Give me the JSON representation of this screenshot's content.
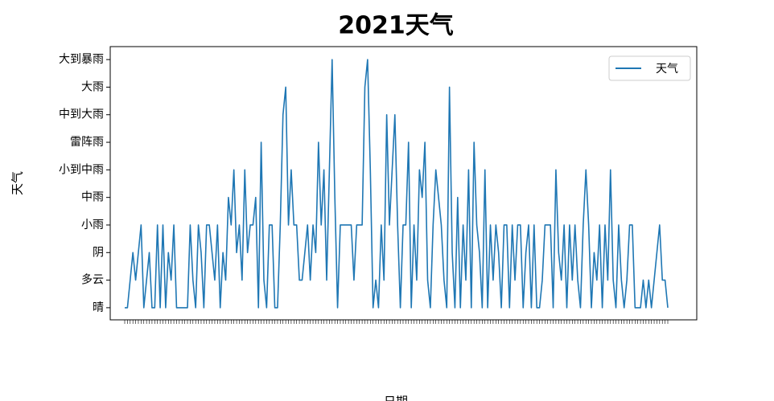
{
  "chart_data": {
    "type": "line",
    "title": "2021天气",
    "x_label": "日期",
    "y_label": "天气",
    "categories": [
      null,
      null,
      null,
      null,
      null,
      null,
      null,
      null,
      null,
      null,
      null,
      null,
      null,
      null,
      null,
      null,
      null,
      null,
      null,
      null,
      null,
      null,
      null,
      null,
      null,
      null,
      null,
      null,
      null,
      null,
      null,
      null,
      null,
      null,
      null,
      null,
      null,
      null,
      null,
      null,
      null,
      null,
      null,
      null,
      null,
      null,
      null,
      null,
      null,
      null,
      null,
      null,
      null,
      null,
      null,
      null,
      null,
      null,
      null,
      null,
      null,
      null,
      null,
      null,
      null,
      null,
      null,
      null,
      null,
      null,
      null,
      null,
      null,
      null,
      null,
      null,
      null,
      null,
      null,
      null,
      null,
      null,
      null,
      null,
      null,
      null,
      null,
      null,
      null,
      null,
      null,
      null,
      null,
      null,
      null,
      null,
      null,
      null,
      null,
      null,
      null,
      null,
      null,
      null,
      null,
      null,
      null,
      null,
      null,
      null,
      null,
      null,
      null,
      null,
      null,
      null,
      null,
      null,
      null,
      null,
      null,
      null,
      null,
      null,
      null,
      null,
      null,
      null,
      null,
      null,
      null,
      null,
      null,
      null,
      null,
      null,
      null,
      null,
      null,
      null,
      null,
      null,
      null,
      null,
      null,
      null,
      null,
      null,
      null,
      null,
      null,
      null,
      null,
      null,
      null,
      null,
      null,
      null,
      null,
      null,
      null,
      null,
      null,
      null,
      null,
      null,
      null,
      null,
      null,
      null,
      null,
      null,
      null,
      null,
      null,
      null,
      null,
      null,
      null,
      null,
      null,
      null,
      null,
      null,
      null,
      null,
      null,
      null,
      null,
      null,
      null,
      null,
      null,
      null,
      null,
      null,
      null,
      null,
      null,
      null
    ],
    "series": [
      {
        "name": "天气",
        "color": "#1f77b4",
        "values": [
          0,
          0,
          1,
          2,
          1,
          2,
          3,
          0,
          1,
          2,
          0,
          0,
          3,
          0,
          3,
          0,
          2,
          1,
          3,
          0,
          0,
          0,
          0,
          0,
          3,
          1,
          0,
          3,
          2,
          0,
          3,
          3,
          2,
          1,
          3,
          0,
          2,
          1,
          4,
          3,
          5,
          2,
          3,
          1,
          5,
          2,
          3,
          3,
          4,
          0,
          6,
          1,
          0,
          3,
          3,
          0,
          0,
          3,
          7,
          8,
          3,
          5,
          3,
          3,
          1,
          1,
          2,
          3,
          1,
          3,
          2,
          6,
          3,
          5,
          1,
          5,
          9,
          4,
          0,
          3,
          3,
          3,
          3,
          3,
          1,
          3,
          3,
          3,
          8,
          9,
          5,
          0,
          1,
          0,
          3,
          1,
          7,
          3,
          5,
          7,
          3,
          0,
          3,
          3,
          6,
          0,
          3,
          1,
          5,
          4,
          6,
          1,
          0,
          3,
          5,
          4,
          3,
          1,
          0,
          8,
          2,
          0,
          4,
          0,
          3,
          1,
          5,
          0,
          6,
          3,
          2,
          0,
          5,
          0,
          3,
          1,
          3,
          2,
          0,
          3,
          3,
          0,
          3,
          1,
          3,
          3,
          0,
          2,
          3,
          0,
          3,
          0,
          0,
          1,
          3,
          3,
          3,
          0,
          5,
          2,
          1,
          3,
          0,
          3,
          1,
          3,
          1,
          0,
          3,
          5,
          3,
          0,
          2,
          1,
          3,
          0,
          3,
          1,
          5,
          1,
          0,
          3,
          1,
          0,
          1,
          3,
          3,
          0,
          0,
          0,
          1,
          0,
          1,
          0,
          1,
          2,
          3,
          1,
          1,
          0
        ]
      }
    ],
    "ylim": [
      -0.44,
      9.47
    ],
    "yticks": [
      {
        "value": 0,
        "label": "晴"
      },
      {
        "value": 1,
        "label": "多云"
      },
      {
        "value": 2,
        "label": "阴"
      },
      {
        "value": 3,
        "label": "小雨"
      },
      {
        "value": 4,
        "label": "中雨"
      },
      {
        "value": 5,
        "label": "小到中雨"
      },
      {
        "value": 6,
        "label": "雷阵雨"
      },
      {
        "value": 7,
        "label": "中到大雨"
      },
      {
        "value": 8,
        "label": "大雨"
      },
      {
        "value": 9,
        "label": "大到暴雨"
      }
    ],
    "legend": "upper right"
  }
}
